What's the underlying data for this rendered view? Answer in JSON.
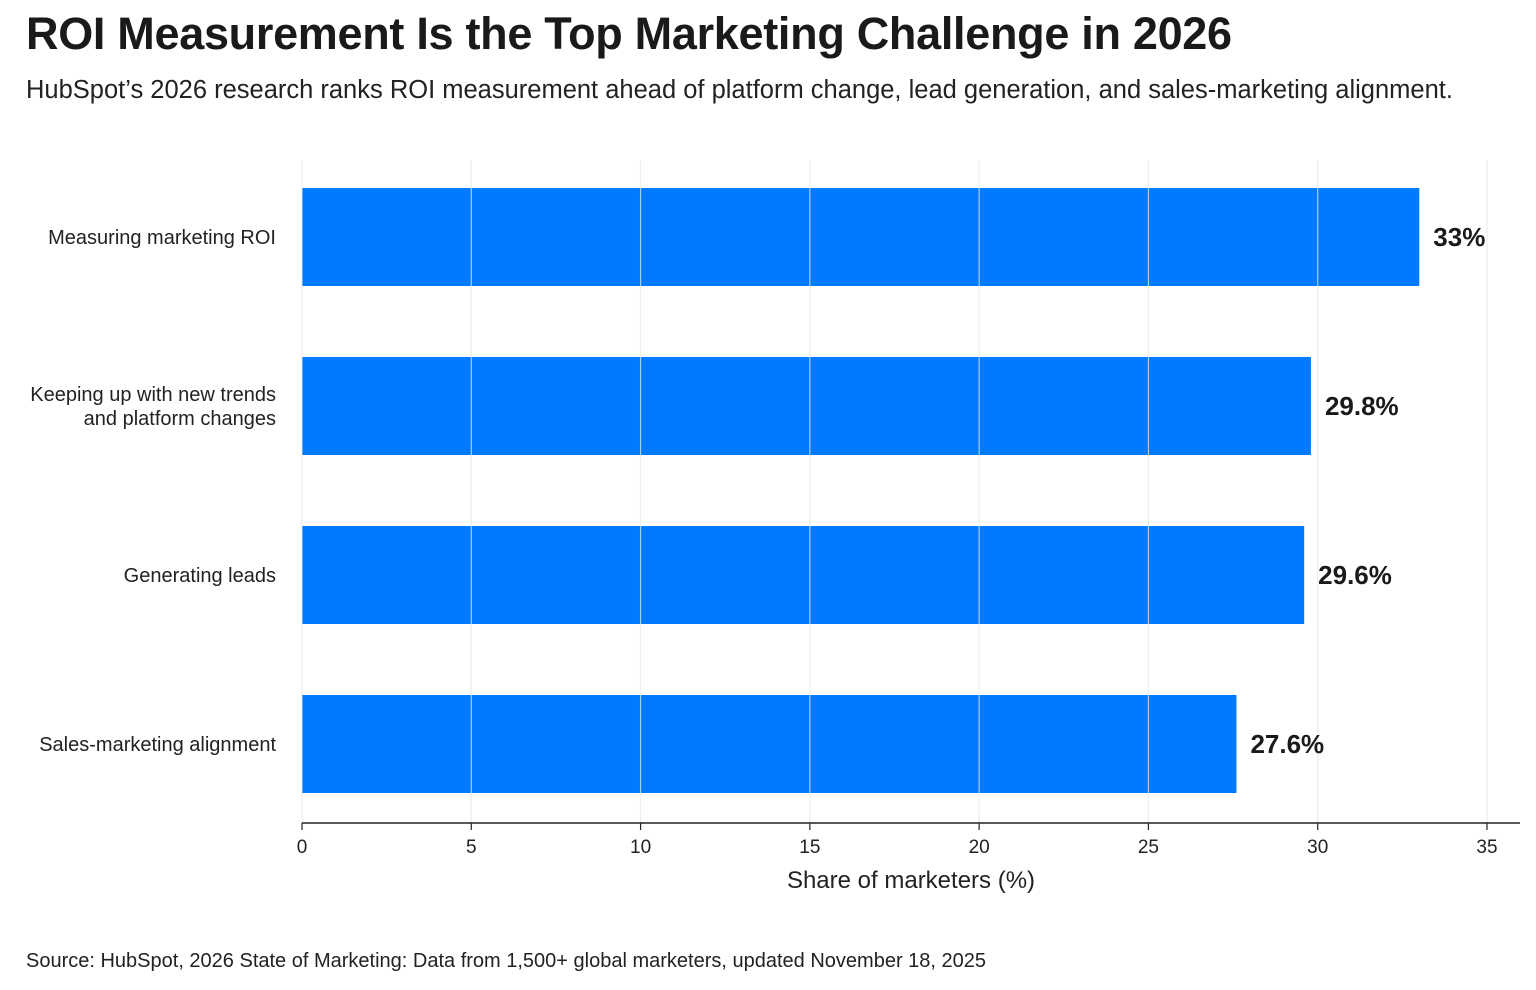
{
  "header": {
    "title": "ROI Measurement Is the Top Marketing Challenge in 2026",
    "subtitle": "HubSpot’s 2026 research ranks ROI measurement ahead of platform change, lead generation, and sales-marketing alignment."
  },
  "footer": {
    "source": "Source: HubSpot, 2026 State of Marketing: Data from 1,500+ global marketers, updated November 18, 2025"
  },
  "chart_data": {
    "type": "bar",
    "orientation": "horizontal",
    "title": "ROI Measurement Is the Top Marketing Challenge in 2026",
    "subtitle": "HubSpot’s 2026 research ranks ROI measurement ahead of platform change, lead generation, and sales-marketing alignment.",
    "categories": [
      [
        "Measuring marketing ROI"
      ],
      [
        "Keeping up with new trends",
        "and platform changes"
      ],
      [
        "Generating leads"
      ],
      [
        "Sales-marketing alignment"
      ]
    ],
    "values": [
      33,
      29.8,
      29.6,
      27.6
    ],
    "data_labels": [
      "33%",
      "29.8%",
      "29.6%",
      "27.6%"
    ],
    "xlabel": "Share of marketers (%)",
    "ylabel": "",
    "xlim": [
      0,
      35
    ],
    "xticks": [
      0,
      5,
      10,
      15,
      20,
      25,
      30,
      35
    ],
    "grid": "vertical",
    "legend": "none",
    "bar_color": "#007BFF"
  }
}
